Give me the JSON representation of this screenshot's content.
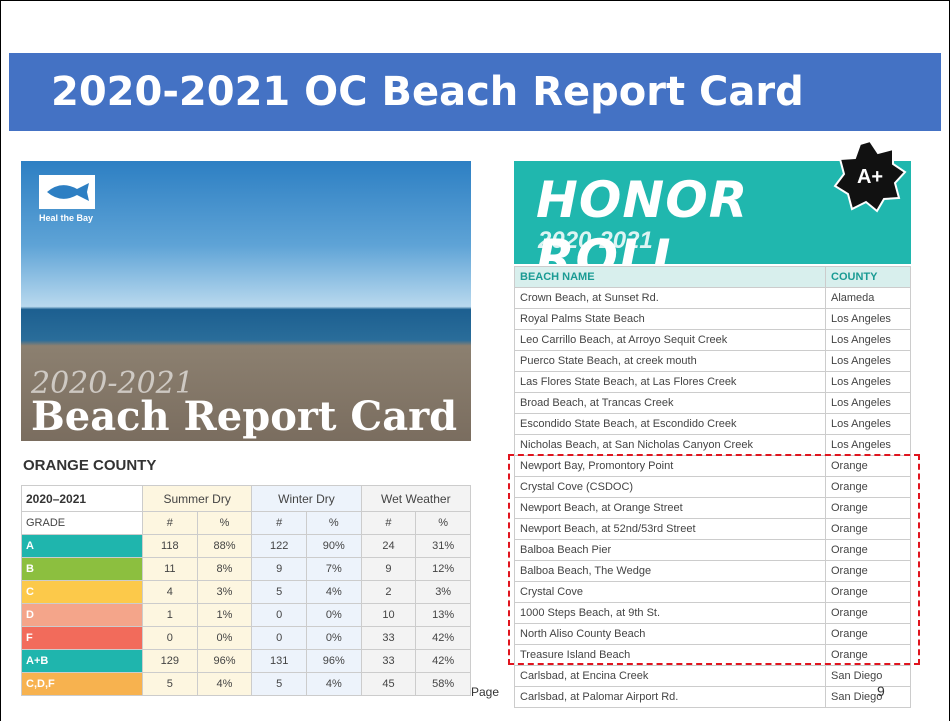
{
  "header": {
    "title": "2020-2021 OC Beach Report Card"
  },
  "cover": {
    "brand": "Heal the Bay",
    "year": "2020-2021",
    "title": "Beach Report Card"
  },
  "orange_county": {
    "title": "ORANGE COUNTY",
    "columns": [
      "2020–2021",
      "Summer Dry",
      "Winter Dry",
      "Wet Weather"
    ],
    "subheader": [
      "GRADE",
      "#",
      "%",
      "#",
      "%",
      "#",
      "%"
    ],
    "rows": [
      [
        "A",
        "118",
        "88%",
        "122",
        "90%",
        "24",
        "31%"
      ],
      [
        "B",
        "11",
        "8%",
        "9",
        "7%",
        "9",
        "12%"
      ],
      [
        "C",
        "4",
        "3%",
        "5",
        "4%",
        "2",
        "3%"
      ],
      [
        "D",
        "1",
        "1%",
        "0",
        "0%",
        "10",
        "13%"
      ],
      [
        "F",
        "0",
        "0%",
        "0",
        "0%",
        "33",
        "42%"
      ],
      [
        "A+B",
        "129",
        "96%",
        "131",
        "96%",
        "33",
        "42%"
      ],
      [
        "C,D,F",
        "5",
        "4%",
        "5",
        "4%",
        "45",
        "58%"
      ]
    ]
  },
  "honor_roll": {
    "title": "HONOR ROLL",
    "year": "2020-2021",
    "badge": "A+",
    "columns": [
      "BEACH NAME",
      "COUNTY"
    ],
    "rows": [
      [
        "Crown Beach, at Sunset Rd.",
        "Alameda"
      ],
      [
        "Royal Palms State Beach",
        "Los Angeles"
      ],
      [
        "Leo Carrillo Beach, at Arroyo Sequit Creek",
        "Los Angeles"
      ],
      [
        "Puerco State Beach, at creek mouth",
        "Los Angeles"
      ],
      [
        "Las Flores State Beach, at Las Flores Creek",
        "Los Angeles"
      ],
      [
        "Broad Beach, at Trancas Creek",
        "Los Angeles"
      ],
      [
        "Escondido State Beach, at Escondido Creek",
        "Los Angeles"
      ],
      [
        "Nicholas Beach, at San Nicholas Canyon Creek",
        "Los Angeles"
      ],
      [
        "Newport Bay, Promontory Point",
        "Orange"
      ],
      [
        "Crystal Cove (CSDOC)",
        "Orange"
      ],
      [
        "Newport Beach, at Orange Street",
        "Orange"
      ],
      [
        "Newport Beach, at 52nd/53rd Street",
        "Orange"
      ],
      [
        "Balboa Beach Pier",
        "Orange"
      ],
      [
        "Balboa Beach, The Wedge",
        "Orange"
      ],
      [
        "Crystal Cove",
        "Orange"
      ],
      [
        "1000 Steps Beach, at 9th St.",
        "Orange"
      ],
      [
        "North Aliso County Beach",
        "Orange"
      ],
      [
        "Treasure Island Beach",
        "Orange"
      ],
      [
        "Carlsbad, at Encina Creek",
        "San Diego"
      ],
      [
        "Carlsbad, at Palomar Airport Rd.",
        "San Diego"
      ]
    ]
  },
  "footer": {
    "page_label": "Page",
    "page_number": "9"
  }
}
